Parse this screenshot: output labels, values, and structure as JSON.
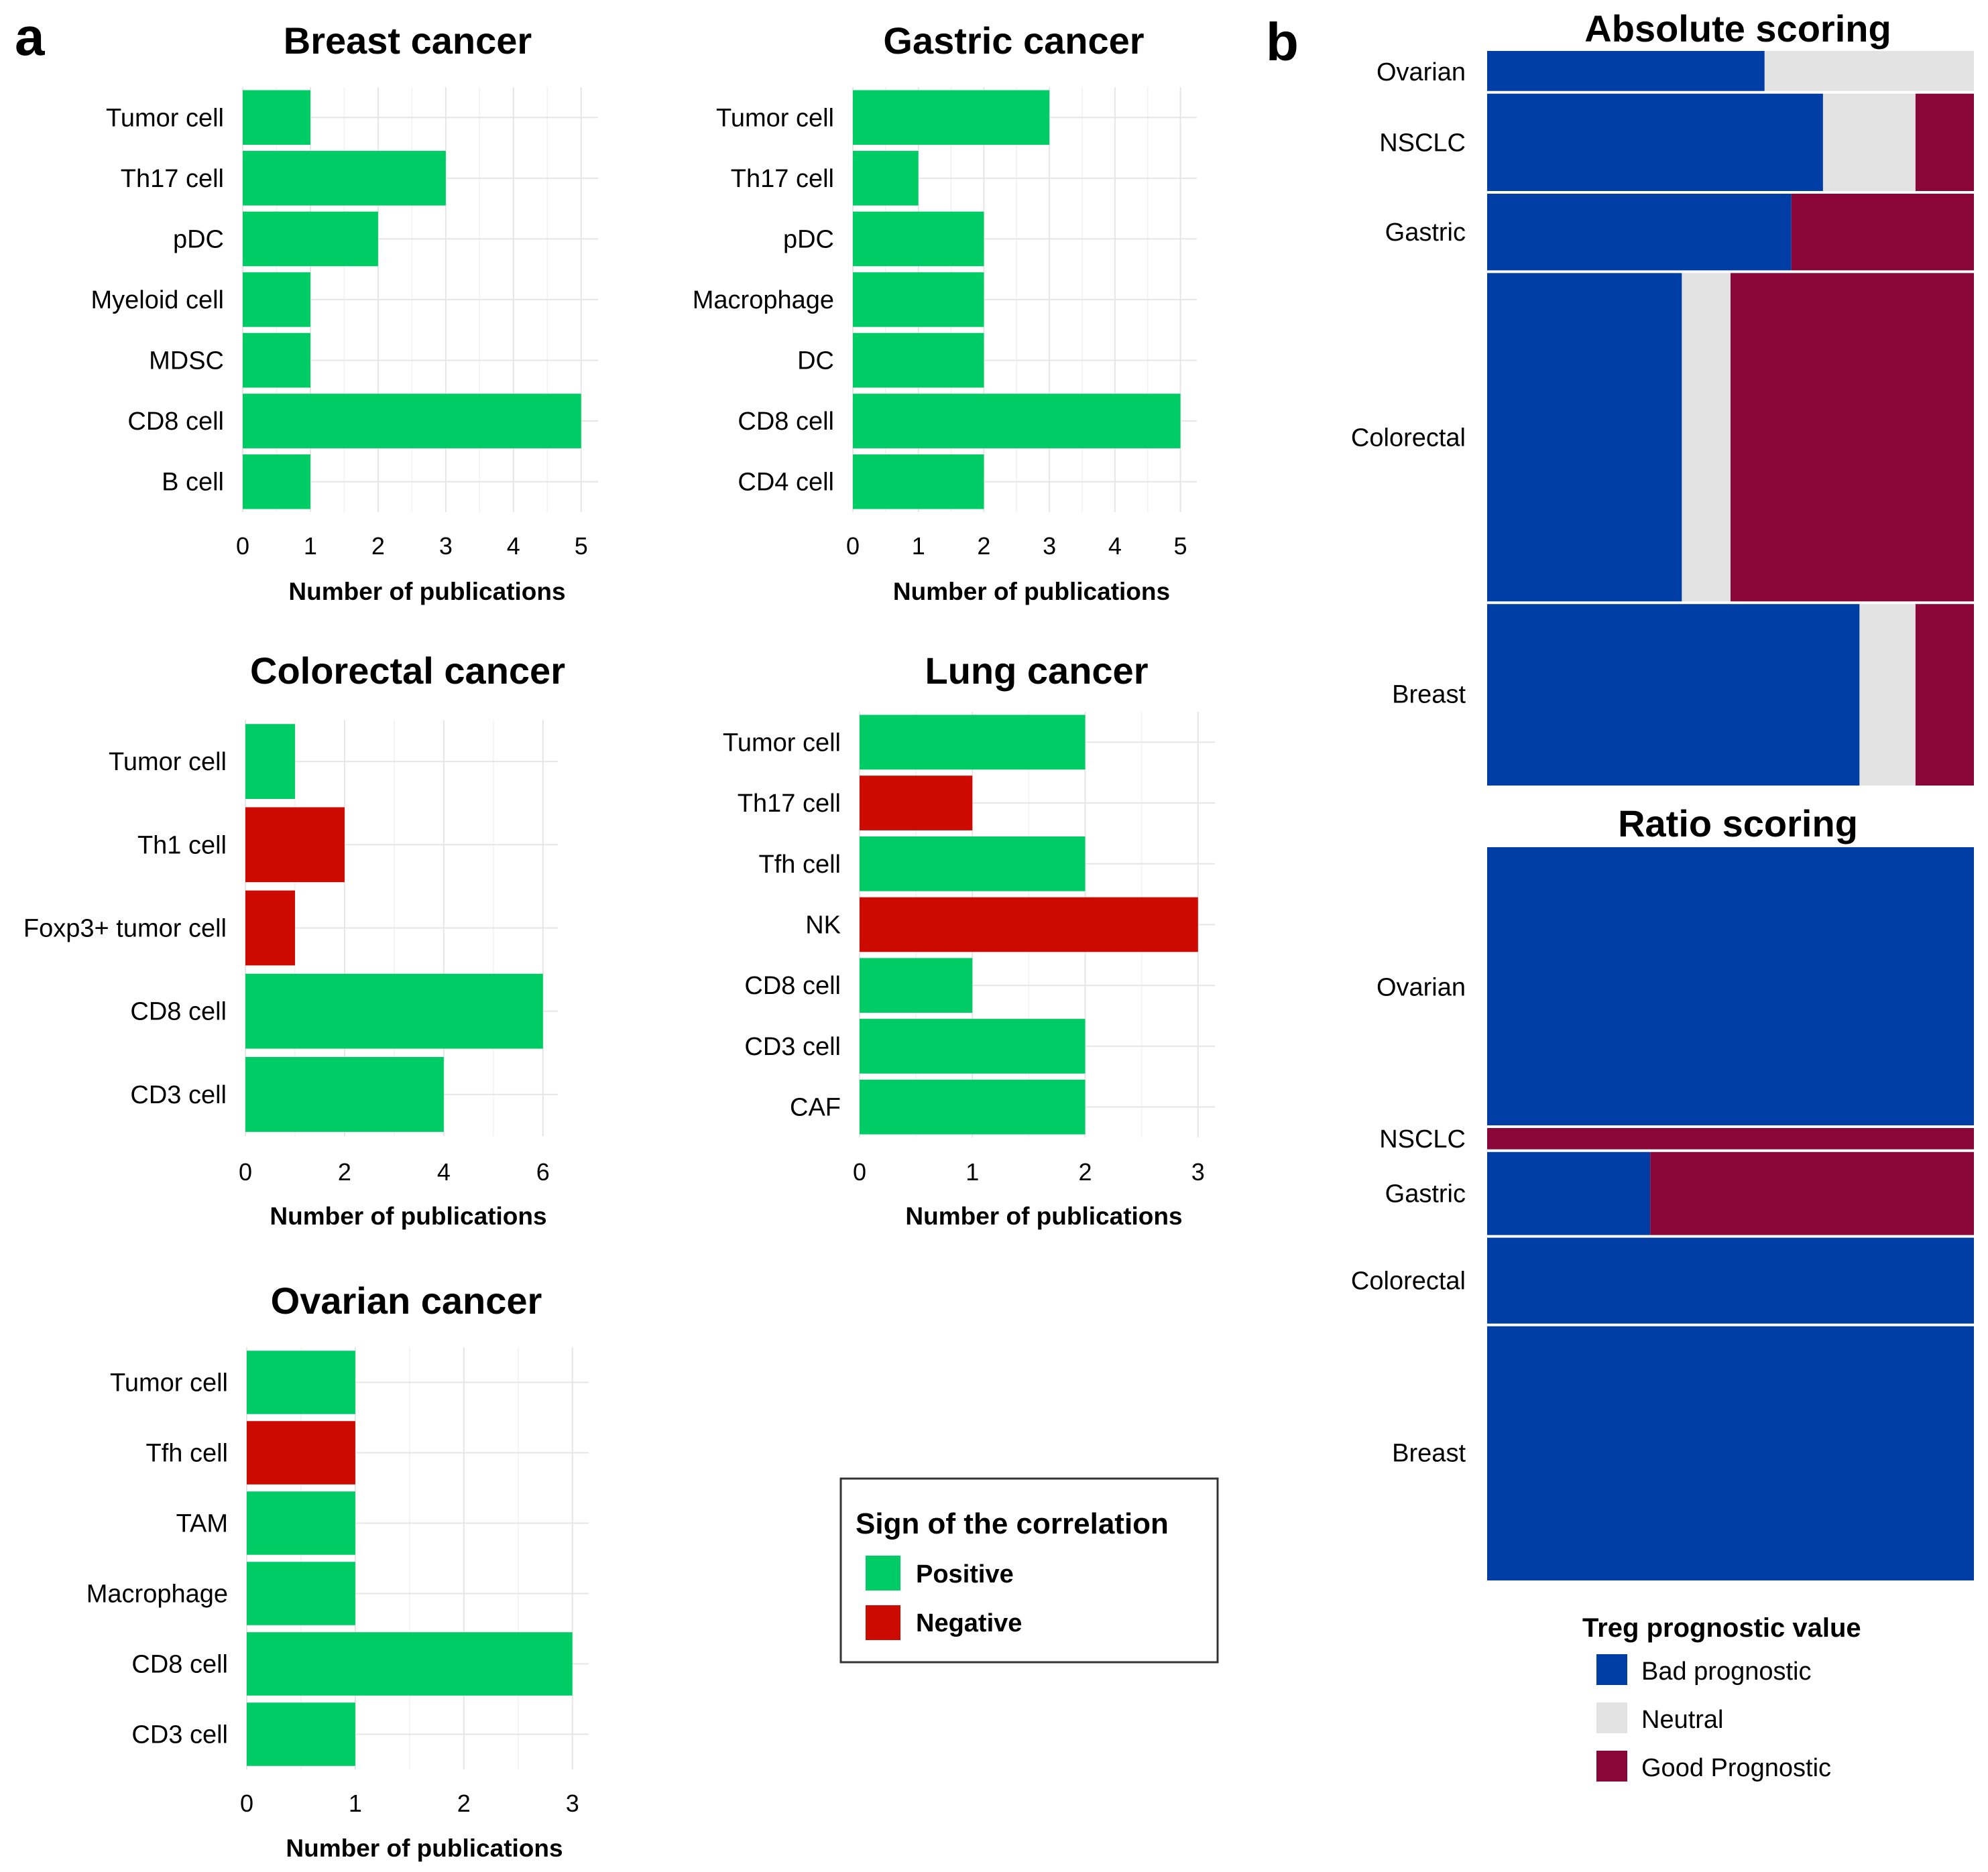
{
  "panels": {
    "a": "a",
    "b": "b"
  },
  "colors": {
    "positive": "#00CC66",
    "negative": "#CC0A00",
    "bad": "#003DA5",
    "neutral": "#E3E3E3",
    "good": "#8A0538"
  },
  "chart_data": [
    {
      "id": "breast",
      "type": "bar",
      "orientation": "horizontal",
      "title": "Breast cancer",
      "xlabel": "Number of publications",
      "ylabel": "",
      "xlim": [
        0,
        5.25
      ],
      "xticks": [
        0,
        1,
        2,
        3,
        4,
        5
      ],
      "categories": [
        "Tumor cell",
        "Th17 cell",
        "pDC",
        "Myeloid cell",
        "MDSC",
        "CD8 cell",
        "B cell"
      ],
      "values": [
        1,
        3,
        2,
        1,
        1,
        5,
        1
      ],
      "signs": [
        "Positive",
        "Positive",
        "Positive",
        "Positive",
        "Positive",
        "Positive",
        "Positive"
      ]
    },
    {
      "id": "gastric",
      "type": "bar",
      "orientation": "horizontal",
      "title": "Gastric cancer",
      "xlabel": "Number of publications",
      "ylabel": "",
      "xlim": [
        0,
        5.25
      ],
      "xticks": [
        0,
        1,
        2,
        3,
        4,
        5
      ],
      "categories": [
        "Tumor cell",
        "Th17 cell",
        "pDC",
        "Macrophage",
        "DC",
        "CD8 cell",
        "CD4 cell"
      ],
      "values": [
        3,
        1,
        2,
        2,
        2,
        5,
        2
      ],
      "signs": [
        "Positive",
        "Positive",
        "Positive",
        "Positive",
        "Positive",
        "Positive",
        "Positive"
      ]
    },
    {
      "id": "colorectal",
      "type": "bar",
      "orientation": "horizontal",
      "title": "Colorectal cancer",
      "xlabel": "Number of publications",
      "ylabel": "",
      "xlim": [
        0,
        6.3
      ],
      "xticks": [
        0,
        2,
        4,
        6
      ],
      "categories": [
        "Tumor cell",
        "Th1 cell",
        "Foxp3+ tumor cell",
        "CD8 cell",
        "CD3 cell"
      ],
      "values": [
        1,
        2,
        1,
        6,
        4
      ],
      "signs": [
        "Positive",
        "Negative",
        "Negative",
        "Positive",
        "Positive"
      ]
    },
    {
      "id": "lung",
      "type": "bar",
      "orientation": "horizontal",
      "title": "Lung cancer",
      "xlabel": "Number of publications",
      "ylabel": "",
      "xlim": [
        0,
        3.15
      ],
      "xticks": [
        0,
        1,
        2,
        3
      ],
      "categories": [
        "Tumor cell",
        "Th17 cell",
        "Tfh cell",
        "NK",
        "CD8 cell",
        "CD3 cell",
        "CAF"
      ],
      "values": [
        2,
        1,
        2,
        3,
        1,
        2,
        2
      ],
      "signs": [
        "Positive",
        "Negative",
        "Positive",
        "Negative",
        "Positive",
        "Positive",
        "Positive"
      ]
    },
    {
      "id": "ovarian",
      "type": "bar",
      "orientation": "horizontal",
      "title": "Ovarian cancer",
      "xlabel": "Number of publications",
      "ylabel": "",
      "xlim": [
        0,
        3.15
      ],
      "xticks": [
        0,
        1,
        2,
        3
      ],
      "categories": [
        "Tumor cell",
        "Tfh cell",
        "TAM",
        "Macrophage",
        "CD8 cell",
        "CD3 cell"
      ],
      "values": [
        1,
        1,
        1,
        1,
        3,
        1
      ],
      "signs": [
        "Positive",
        "Negative",
        "Positive",
        "Positive",
        "Positive",
        "Positive"
      ]
    },
    {
      "id": "absolute",
      "type": "mosaic",
      "title": "Absolute scoring",
      "categories": [
        "Ovarian",
        "NSCLC",
        "Gastric",
        "Colorectal",
        "Breast"
      ],
      "row_share": [
        0.06,
        0.145,
        0.115,
        0.48,
        0.265
      ],
      "proportions": [
        {
          "bad": 0.57,
          "neutral": 0.43,
          "good": 0.0
        },
        {
          "bad": 0.69,
          "neutral": 0.19,
          "good": 0.12
        },
        {
          "bad": 0.625,
          "neutral": 0.0,
          "good": 0.375
        },
        {
          "bad": 0.4,
          "neutral": 0.1,
          "good": 0.5
        },
        {
          "bad": 0.765,
          "neutral": 0.115,
          "good": 0.12
        }
      ]
    },
    {
      "id": "ratio",
      "type": "mosaic",
      "title": "Ratio scoring",
      "categories": [
        "Ovarian",
        "NSCLC",
        "Gastric",
        "Colorectal",
        "Breast"
      ],
      "row_share": [
        0.385,
        0.033,
        0.118,
        0.122,
        0.352
      ],
      "proportions": [
        {
          "bad": 1.0,
          "neutral": 0.0,
          "good": 0.0
        },
        {
          "bad": 0.0,
          "neutral": 0.0,
          "good": 1.0
        },
        {
          "bad": 0.335,
          "neutral": 0.0,
          "good": 0.665
        },
        {
          "bad": 1.0,
          "neutral": 0.0,
          "good": 0.0
        },
        {
          "bad": 1.0,
          "neutral": 0.0,
          "good": 0.0
        }
      ]
    }
  ],
  "legend_sign": {
    "title": "Sign of the correlation",
    "items": [
      {
        "key": "positive",
        "label": "Positive"
      },
      {
        "key": "negative",
        "label": "Negative"
      }
    ]
  },
  "legend_treg": {
    "title": "Treg prognostic value",
    "items": [
      {
        "key": "bad",
        "label": "Bad prognostic"
      },
      {
        "key": "neutral",
        "label": "Neutral"
      },
      {
        "key": "good",
        "label": "Good Prognostic"
      }
    ]
  }
}
